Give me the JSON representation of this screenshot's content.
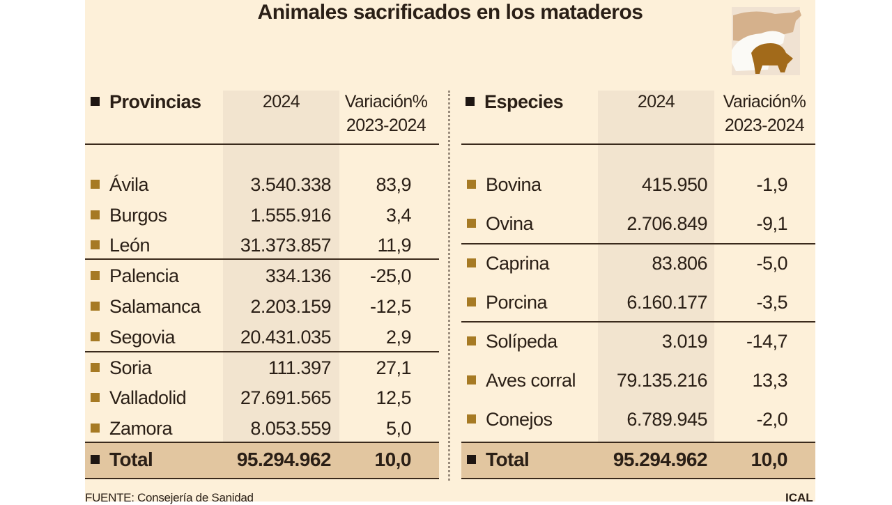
{
  "title": "Animales sacrificados en los mataderos",
  "logo_icon": "livestock-silhouettes-icon",
  "colors": {
    "background": "#fdf0d9",
    "column_shade": "#f2e4cf",
    "total_row": "#e2c6a0",
    "bullet": "#a67a24"
  },
  "provincias": {
    "header": "Provincias",
    "col_2024": "2024",
    "col_var_1": "Variación%",
    "col_var_2": "2023-2024",
    "rows": [
      {
        "name": "Ávila",
        "value": "3.540.338",
        "var": "83,9"
      },
      {
        "name": "Burgos",
        "value": "1.555.916",
        "var": "3,4"
      },
      {
        "name": "León",
        "value": "31.373.857",
        "var": "11,9"
      },
      {
        "name": "Palencia",
        "value": "334.136",
        "var": "-25,0"
      },
      {
        "name": "Salamanca",
        "value": "2.203.159",
        "var": "-12,5"
      },
      {
        "name": "Segovia",
        "value": "20.431.035",
        "var": "2,9"
      },
      {
        "name": "Soria",
        "value": "111.397",
        "var": "27,1"
      },
      {
        "name": "Valladolid",
        "value": "27.691.565",
        "var": "12,5"
      },
      {
        "name": "Zamora",
        "value": "8.053.559",
        "var": "5,0"
      }
    ],
    "total": {
      "name": "Total",
      "value": "95.294.962",
      "var": "10,0"
    }
  },
  "especies": {
    "header": "Especies",
    "col_2024": "2024",
    "col_var_1": "Variación%",
    "col_var_2": "2023-2024",
    "rows": [
      {
        "name": "Bovina",
        "value": "415.950",
        "var": "-1,9"
      },
      {
        "name": "Ovina",
        "value": "2.706.849",
        "var": "-9,1"
      },
      {
        "name": "Caprina",
        "value": "83.806",
        "var": "-5,0"
      },
      {
        "name": "Porcina",
        "value": "6.160.177",
        "var": "-3,5"
      },
      {
        "name": "Solípeda",
        "value": "3.019",
        "var": "-14,7"
      },
      {
        "name": "Aves corral",
        "value": "79.135.216",
        "var": "13,3"
      },
      {
        "name": "Conejos",
        "value": "6.789.945",
        "var": "-2,0"
      }
    ],
    "total": {
      "name": "Total",
      "value": "95.294.962",
      "var": "10,0"
    }
  },
  "footer": {
    "source": "FUENTE: Consejería de Sanidad",
    "credit": "ICAL"
  }
}
